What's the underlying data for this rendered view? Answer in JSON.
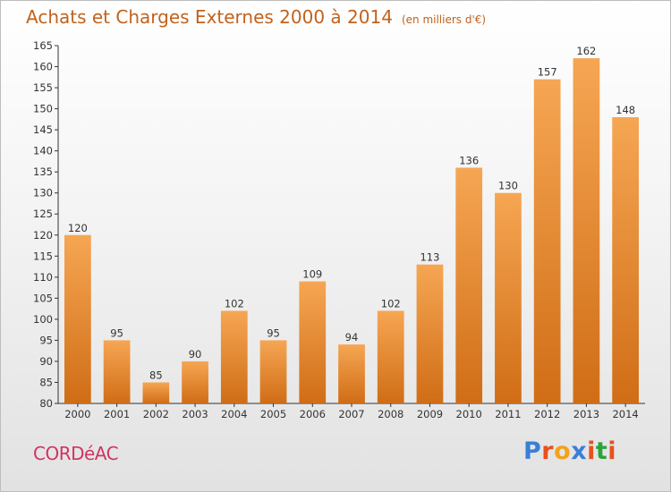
{
  "header": {
    "title": "Achats et Charges Externes 2000 à 2014",
    "subtitle": "(en milliers d'€)"
  },
  "footer": {
    "commune": "CORDéAC",
    "logo_text": "Proxiti",
    "logo_colors": [
      "#3a7fd5",
      "#e8501e",
      "#f2a21b",
      "#3a7fd5",
      "#e8501e",
      "#2aa33b",
      "#e8501e"
    ]
  },
  "colors": {
    "bar_top": "#f6a653",
    "bar_bottom": "#d06d16",
    "title": "#c2621b",
    "commune": "#d03464"
  },
  "chart_data": {
    "type": "bar",
    "title": "Achats et Charges Externes 2000 à 2014",
    "categories": [
      "2000",
      "2001",
      "2002",
      "2003",
      "2004",
      "2005",
      "2006",
      "2007",
      "2008",
      "2009",
      "2010",
      "2011",
      "2012",
      "2013",
      "2014"
    ],
    "values": [
      120,
      95,
      85,
      90,
      102,
      95,
      109,
      94,
      102,
      113,
      136,
      130,
      157,
      162,
      148
    ],
    "data_labels": [
      "120",
      "95",
      "85",
      "90",
      "102",
      "95",
      "109",
      "94",
      "102",
      "113",
      "136",
      "130",
      "157",
      "162",
      "148"
    ],
    "ylim": [
      80,
      165
    ],
    "ytick_step": 5,
    "xlabel": "",
    "ylabel": "",
    "grid": false,
    "legend": "none"
  }
}
